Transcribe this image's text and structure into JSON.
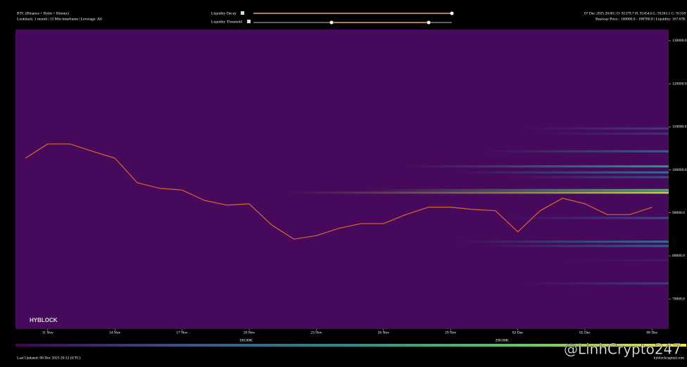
{
  "chart_data": {
    "type": "line",
    "title": "BTC (Binance + Bybit + Bitmex)",
    "subtitle": "Lookback: 1 month | 15 Min timeframe | Leverage: All",
    "ohlc_text": "07 Dec 2025 20:00 | O: 91379.7 H: 91454.6 L: 91263.1 C: 91318",
    "hover_text": "Bestway Price : 100800.0 - 100780.0 | Liquidity: 167.67K",
    "controls": [
      "Liquidity Decay",
      "Liquidity Threshold"
    ],
    "brand": "HYBLOCK",
    "updated": "Last Updated: 08 Dec 2025 20:12 (UTC)",
    "site": "hyblockcapital.com",
    "watermark": "@LinhCrypto247",
    "categories": [
      null,
      "11 Nov",
      null,
      null,
      "14 Nov",
      null,
      null,
      "17 Nov",
      null,
      null,
      "20 Nov",
      null,
      null,
      "23 Nov",
      null,
      null,
      "26 Nov",
      null,
      null,
      "29 Nov",
      null,
      null,
      "02 Dec",
      null,
      null,
      "05 Dec",
      null,
      null,
      "08 Dec"
    ],
    "series": [
      {
        "name": "BTC",
        "color": "#d9682a",
        "values": [
          102700,
          106000,
          106000,
          104300,
          102700,
          97000,
          95700,
          95300,
          92900,
          91800,
          92100,
          87200,
          83900,
          84700,
          86400,
          87500,
          87500,
          89600,
          91300,
          91300,
          90800,
          90500,
          85600,
          90500,
          93400,
          92100,
          89600,
          89600,
          91300
        ]
      }
    ],
    "ylim": [
      63000,
      132600
    ],
    "yticks": [
      {
        "value": 130000,
        "label": "130000.0"
      },
      {
        "value": 120000,
        "label": "120000.0"
      },
      {
        "value": 110000,
        "label": "110000.0"
      },
      {
        "value": 100000,
        "label": "100000.0"
      },
      {
        "value": 90000,
        "label": "90000.0"
      },
      {
        "value": 80000,
        "label": "80000.0"
      },
      {
        "value": 70000,
        "label": "70000.0"
      }
    ],
    "liquidity_bands": [
      {
        "price": 109600,
        "liquidity": 60000
      },
      {
        "price": 108400,
        "liquidity": 50000
      },
      {
        "price": 104300,
        "liquidity": 90000
      },
      {
        "price": 100800,
        "liquidity": 150000
      },
      {
        "price": 99400,
        "liquidity": 110000
      },
      {
        "price": 98300,
        "liquidity": 70000
      },
      {
        "price": 95300,
        "liquidity": 180000
      },
      {
        "price": 94700,
        "liquidity": 240000
      },
      {
        "price": 88800,
        "liquidity": 70000
      },
      {
        "price": 83300,
        "liquidity": 110000
      },
      {
        "price": 82300,
        "liquidity": 90000
      },
      {
        "price": 79000,
        "liquidity": 30000
      },
      {
        "price": 73600,
        "liquidity": 60000
      }
    ],
    "colorbar": {
      "lim": [
        10000,
        272000
      ],
      "ticks": [
        {
          "value": 100000,
          "label": "100.00K"
        },
        {
          "value": 200000,
          "label": "200.00K"
        }
      ]
    }
  }
}
